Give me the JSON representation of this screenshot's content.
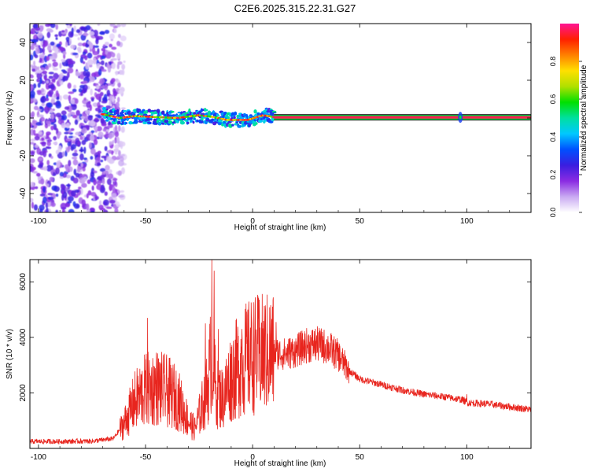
{
  "title": "C2E6.2025.315.22.31.G27",
  "chart_data": [
    {
      "type": "heatmap",
      "id": "spectrogram",
      "xlabel": "Height of straight line (km)",
      "ylabel": "Frequency (Hz)",
      "xlim": [
        -104,
        130
      ],
      "ylim": [
        -50,
        50
      ],
      "xticks": [
        -100,
        -50,
        0,
        50,
        100
      ],
      "yticks": [
        -40,
        -20,
        0,
        20,
        40
      ],
      "colorbar": {
        "label": "Normalized spectral amplitude",
        "range": [
          0,
          1
        ],
        "ticks": [
          "0.0",
          "0.2",
          "0.4",
          "0.6",
          "0.8"
        ],
        "colors": [
          "#ffffff",
          "#c9a9f2",
          "#8a2be2",
          "#3a1ee0",
          "#0050ff",
          "#00c8ff",
          "#00e0a0",
          "#00e000",
          "#b0e000",
          "#ffe000",
          "#ff8000",
          "#ff2000",
          "#ff1493"
        ]
      },
      "signal": {
        "noise_region_x": [
          -104,
          -62
        ],
        "onset_x": -70,
        "track": [
          [
            -70,
            2
          ],
          [
            -62,
            0
          ],
          [
            -55,
            1
          ],
          [
            -45,
            0.5
          ],
          [
            -35,
            0
          ],
          [
            -25,
            1.5
          ],
          [
            -18,
            0.5
          ],
          [
            -12,
            -1
          ],
          [
            -2,
            -1
          ],
          [
            5,
            1.5
          ],
          [
            10,
            0.5
          ],
          [
            20,
            0.2
          ],
          [
            60,
            0.2
          ],
          [
            97,
            0.2
          ],
          [
            130,
            0.2
          ]
        ],
        "bright_from_x": 10,
        "marker_x": 97
      }
    },
    {
      "type": "line",
      "id": "snr",
      "xlabel": "Height of straight line (km)",
      "ylabel": "SNR (10 * v/v)",
      "xlim": [
        -104,
        130
      ],
      "ylim": [
        0,
        6800
      ],
      "xticks": [
        -100,
        -50,
        0,
        50,
        100
      ],
      "yticks": [
        2000,
        4000,
        6000
      ],
      "color": "#e8251e",
      "envelope": [
        [
          -104,
          250
        ],
        [
          -90,
          250
        ],
        [
          -75,
          260
        ],
        [
          -65,
          350
        ],
        [
          -60,
          900
        ],
        [
          -55,
          1700
        ],
        [
          -50,
          2100
        ],
        [
          -45,
          2200
        ],
        [
          -40,
          2050
        ],
        [
          -35,
          1800
        ],
        [
          -30,
          1000
        ],
        [
          -27,
          700
        ],
        [
          -24,
          1400
        ],
        [
          -21,
          2200
        ],
        [
          -19,
          3500
        ],
        [
          -17,
          2000
        ],
        [
          -14,
          1800
        ],
        [
          -10,
          2600
        ],
        [
          -5,
          3100
        ],
        [
          0,
          3350
        ],
        [
          5,
          3400
        ],
        [
          10,
          3450
        ],
        [
          15,
          3400
        ],
        [
          20,
          3500
        ],
        [
          25,
          3700
        ],
        [
          30,
          3750
        ],
        [
          35,
          3650
        ],
        [
          40,
          3350
        ],
        [
          45,
          2800
        ],
        [
          50,
          2500
        ],
        [
          60,
          2300
        ],
        [
          70,
          2100
        ],
        [
          80,
          1950
        ],
        [
          90,
          1850
        ],
        [
          98,
          1750
        ],
        [
          100,
          1650
        ],
        [
          110,
          1600
        ],
        [
          120,
          1500
        ],
        [
          130,
          1400
        ]
      ],
      "spikes": [
        [
          -19,
          6800
        ],
        [
          -18,
          6400
        ],
        [
          -49,
          4700
        ],
        [
          -22,
          4500
        ],
        [
          -16,
          4300
        ],
        [
          -5,
          4300
        ],
        [
          -1,
          4350
        ],
        [
          11,
          4550
        ],
        [
          31,
          4000
        ],
        [
          100,
          1950
        ]
      ]
    }
  ]
}
